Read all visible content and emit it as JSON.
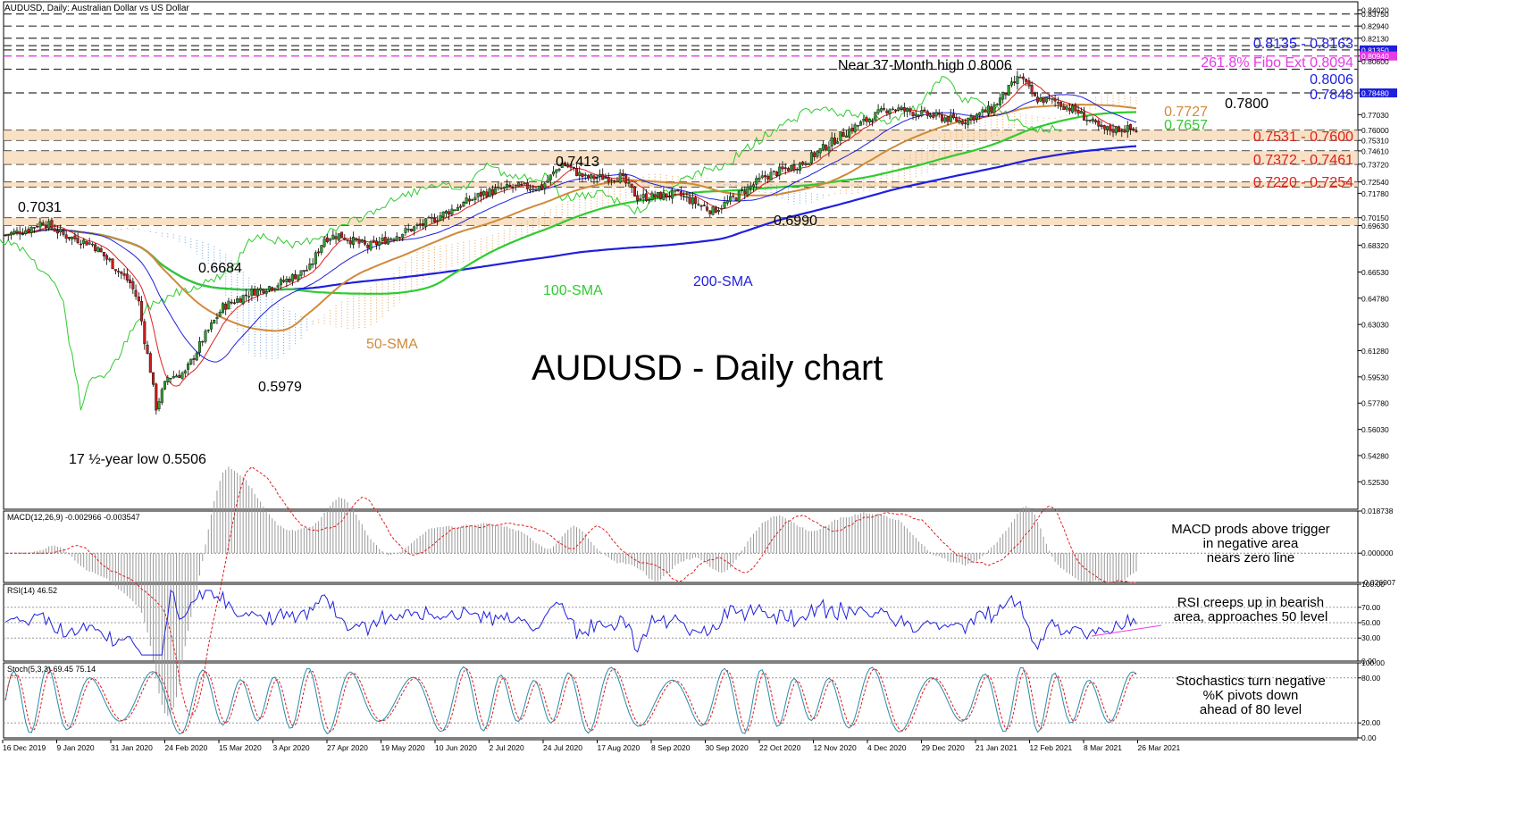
{
  "chart_data": {
    "type": "candlestick",
    "header": "AUDUSD, Daily:  Australian Dollar vs US Dollar",
    "title": "AUDUSD - Daily chart",
    "price_axis": {
      "ylim": [
        0.507,
        0.8456
      ],
      "ticks": [
        "0.84020",
        "0.83750",
        "0.82940",
        "0.82130",
        "0.81350",
        "0.80940",
        "0.80600",
        "0.78480",
        "0.77030",
        "0.76000",
        "0.75310",
        "0.74610",
        "0.73720",
        "0.72540",
        "0.71780",
        "0.70150",
        "0.69630",
        "0.68320",
        "0.66530",
        "0.64780",
        "0.63030",
        "0.61280",
        "0.59530",
        "0.57780",
        "0.56030",
        "0.54280",
        "0.52530"
      ],
      "highlighted_ticks": {
        "0.81350": "#1f1fdd",
        "0.80940": "#e53be5",
        "0.78480": "#1f1fdd"
      }
    },
    "x_axis": {
      "labels": [
        "16 Dec 2019",
        "9 Jan 2020",
        "31 Jan 2020",
        "24 Feb 2020",
        "15 Mar 2020",
        "3 Apr 2020",
        "27 Apr 2020",
        "19 May 2020",
        "10 Jun 2020",
        "2 Jul 2020",
        "24 Jul 2020",
        "17 Aug 2020",
        "8 Sep 2020",
        "30 Sep 2020",
        "22 Oct 2020",
        "12 Nov 2020",
        "4 Dec 2020",
        "29 Dec 2020",
        "21 Jan 2021",
        "12 Feb 2021",
        "8 Mar 2021",
        "26 Mar 2021"
      ]
    },
    "horizontal_levels": [
      0.8375,
      0.8294,
      0.8213,
      0.8163,
      0.8135,
      0.8006,
      0.7848,
      0.76,
      0.7531,
      0.7461,
      0.7372,
      0.7254,
      0.722,
      0.7015,
      0.6963
    ],
    "zones": [
      [
        0.7531,
        0.76
      ],
      [
        0.7372,
        0.7461
      ],
      [
        0.722,
        0.7254
      ],
      [
        0.6963,
        0.7015
      ]
    ],
    "fibo_level": 0.8094,
    "close_anchors": [
      [
        0,
        0.69
      ],
      [
        8,
        0.694
      ],
      [
        13,
        0.699
      ],
      [
        20,
        0.69
      ],
      [
        30,
        0.684
      ],
      [
        38,
        0.668
      ],
      [
        43,
        0.658
      ],
      [
        46,
        0.645
      ],
      [
        48,
        0.62
      ],
      [
        50,
        0.6
      ],
      [
        52,
        0.575
      ],
      [
        56,
        0.595
      ],
      [
        62,
        0.598
      ],
      [
        68,
        0.62
      ],
      [
        75,
        0.642
      ],
      [
        85,
        0.652
      ],
      [
        95,
        0.658
      ],
      [
        105,
        0.668
      ],
      [
        110,
        0.688
      ],
      [
        115,
        0.69
      ],
      [
        125,
        0.682
      ],
      [
        135,
        0.69
      ],
      [
        145,
        0.698
      ],
      [
        155,
        0.708
      ],
      [
        165,
        0.718
      ],
      [
        175,
        0.722
      ],
      [
        185,
        0.722
      ],
      [
        192,
        0.738
      ],
      [
        200,
        0.728
      ],
      [
        212,
        0.729
      ],
      [
        218,
        0.715
      ],
      [
        232,
        0.717
      ],
      [
        244,
        0.706
      ],
      [
        250,
        0.713
      ],
      [
        262,
        0.729
      ],
      [
        275,
        0.738
      ],
      [
        290,
        0.759
      ],
      [
        305,
        0.775
      ],
      [
        318,
        0.77
      ],
      [
        330,
        0.766
      ],
      [
        340,
        0.774
      ],
      [
        350,
        0.796
      ],
      [
        355,
        0.781
      ],
      [
        362,
        0.779
      ],
      [
        370,
        0.772
      ],
      [
        378,
        0.76
      ],
      [
        385,
        0.761
      ],
      [
        390,
        0.76
      ]
    ],
    "annotations": [
      {
        "text": "Near 37-Month high 0.8006",
        "color": "#000000"
      },
      {
        "text": "0.8135 - 0.8163",
        "color": "#1f1fdd"
      },
      {
        "text": "261.8% Fibo Ext 0.8094",
        "color": "#e53be5"
      },
      {
        "text": "0.8006",
        "color": "#1f1fdd"
      },
      {
        "text": "0.7848",
        "color": "#1f1fdd"
      },
      {
        "text": "0.7800",
        "color": "#000000"
      },
      {
        "text": "0.7727",
        "color": "#d08a3a"
      },
      {
        "text": "0.7657",
        "color": "#2ecc2e"
      },
      {
        "text": "0.7531 - 0.7600",
        "color": "#dd1f1f"
      },
      {
        "text": "0.7372 - 0.7461",
        "color": "#dd1f1f"
      },
      {
        "text": "0.7220 - 0.7254",
        "color": "#dd1f1f"
      },
      {
        "text": "0.7413",
        "color": "#000000"
      },
      {
        "text": "0.7031",
        "color": "#000000"
      },
      {
        "text": "0.6990",
        "color": "#000000"
      },
      {
        "text": "0.6684",
        "color": "#000000"
      },
      {
        "text": "0.5979",
        "color": "#000000"
      },
      {
        "text": "17 ½-year low 0.5506",
        "color": "#000000"
      },
      {
        "text": "100-SMA",
        "color": "#2ecc2e"
      },
      {
        "text": "200-SMA",
        "color": "#1f1fdd"
      },
      {
        "text": "50-SMA",
        "color": "#d08a3a"
      }
    ],
    "colors": {
      "bull": "#2e9e2e",
      "bear": "#c81e1e",
      "sma200": "#1f1fdd",
      "sma100": "#2ecc2e",
      "sma50": "#d08a3a",
      "fast_line": "#dd1f1f",
      "slow_line": "#1f1fdd",
      "lagging": "#2ecc2e",
      "cloud": "#e8a55c"
    },
    "macd": {
      "header": "MACD(12,26,9) -0.002966 -0.003547",
      "ticks": [
        "0.018738",
        "0.000000",
        "-0.026907"
      ],
      "note": [
        "MACD prods above trigger",
        "in negative area",
        "nears zero line"
      ]
    },
    "rsi": {
      "header": "RSI(14) 46.52",
      "ticks": [
        "100.00",
        "70.00",
        "50.00",
        "30.00",
        "0.00"
      ],
      "note": [
        "RSI creeps up in bearish",
        "area, approaches 50 level"
      ]
    },
    "stoch": {
      "header": "Stoch(5,3,3) 69.45 75.14",
      "ticks": [
        "100.00",
        "80.00",
        "20.00",
        "0.00"
      ],
      "note": [
        "Stochastics turn negative",
        "%K pivots down",
        "ahead of 80 level"
      ]
    }
  }
}
